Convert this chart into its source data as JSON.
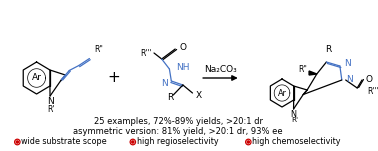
{
  "bg_color": "#ffffff",
  "line1": "25 examples, 72%-89% yields, >20:1 dr",
  "line2": "asymmetric version: 81% yield, >20:1 dr, 93% ee",
  "bullet1": "wide substrate scope",
  "bullet2": "high regioselectivity",
  "bullet3": "high chemoselectivity",
  "arrow_label": "Na₂CO₃",
  "blue_color": "#4472C4",
  "red_color": "#cc0000",
  "text_color": "#000000",
  "text_fontsize": 6.0,
  "bullet_fontsize": 5.8,
  "label_fontsize": 6.5,
  "figsize": [
    3.78,
    1.51
  ],
  "dpi": 100
}
